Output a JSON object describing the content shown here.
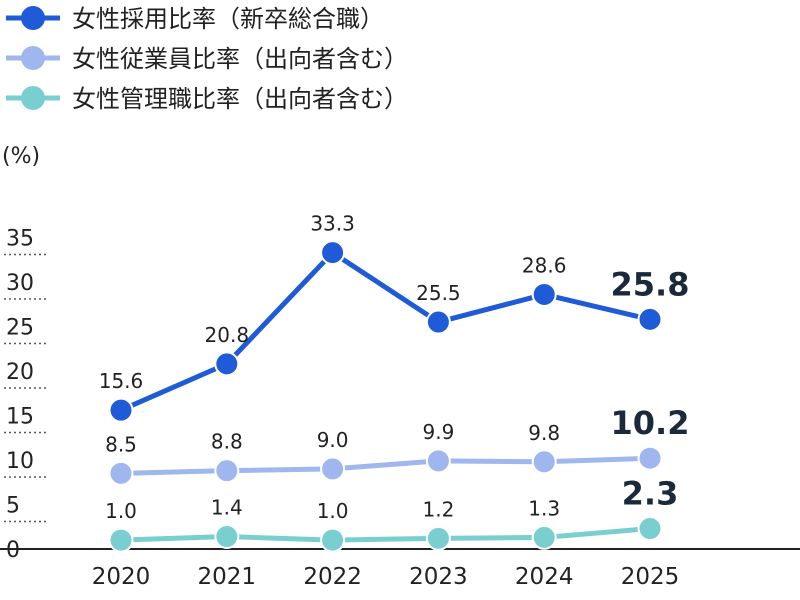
{
  "chart_data": {
    "type": "line",
    "x": [
      "2020",
      "2021",
      "2022",
      "2023",
      "2024",
      "2025"
    ],
    "series": [
      {
        "name": "女性採用比率（新卒総合職）",
        "color": "#1f5bd6",
        "values": [
          15.6,
          20.8,
          33.3,
          25.5,
          28.6,
          25.8
        ],
        "labels": [
          "15.6",
          "20.8",
          "33.3",
          "25.5",
          "28.6",
          "25.8"
        ]
      },
      {
        "name": "女性従業員比率（出向者含む）",
        "color": "#9fb7ee",
        "values": [
          8.5,
          8.8,
          9.0,
          9.9,
          9.8,
          10.2
        ],
        "labels": [
          "8.5",
          "8.8",
          "9.0",
          "9.9",
          "9.8",
          "10.2"
        ]
      },
      {
        "name": "女性管理職比率（出向者含む）",
        "color": "#79cfcf",
        "values": [
          1.0,
          1.4,
          1.0,
          1.2,
          1.3,
          2.3
        ],
        "labels": [
          "1.0",
          "1.4",
          "1.0",
          "1.2",
          "1.3",
          "2.3"
        ]
      }
    ],
    "ylabel": "(%)",
    "yticks": [
      "0",
      "5",
      "10",
      "15",
      "20",
      "25",
      "30",
      "35"
    ],
    "ylim": [
      0,
      35
    ],
    "grid": "dotted ticks at y-axis",
    "legend": "top-left",
    "highlight_last_label": true
  }
}
